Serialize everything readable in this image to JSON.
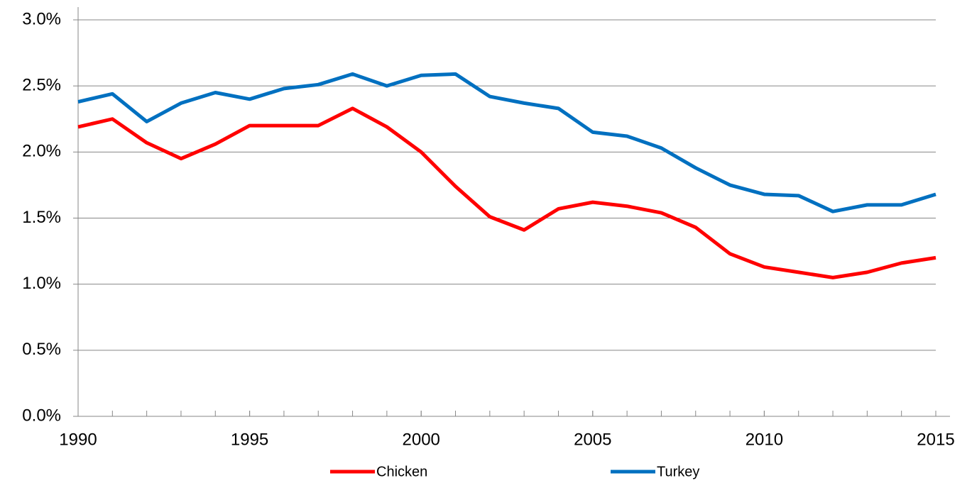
{
  "chart_data": {
    "type": "line",
    "x": [
      1990,
      1991,
      1992,
      1993,
      1994,
      1995,
      1996,
      1997,
      1998,
      1999,
      2000,
      2001,
      2002,
      2003,
      2004,
      2005,
      2006,
      2007,
      2008,
      2009,
      2010,
      2011,
      2012,
      2013,
      2014,
      2015
    ],
    "series": [
      {
        "name": "Chicken",
        "color": "#ff0000",
        "values": [
          2.19,
          2.25,
          2.07,
          1.95,
          2.06,
          2.2,
          2.2,
          2.2,
          2.33,
          2.19,
          2.0,
          1.74,
          1.51,
          1.41,
          1.57,
          1.62,
          1.59,
          1.54,
          1.43,
          1.23,
          1.13,
          1.09,
          1.05,
          1.09,
          1.16,
          1.2
        ]
      },
      {
        "name": "Turkey",
        "color": "#0070c0",
        "values": [
          2.38,
          2.44,
          2.23,
          2.37,
          2.45,
          2.4,
          2.48,
          2.51,
          2.59,
          2.5,
          2.58,
          2.59,
          2.42,
          2.37,
          2.33,
          2.15,
          2.12,
          2.03,
          1.88,
          1.75,
          1.68,
          1.67,
          1.55,
          1.6,
          1.6,
          1.68
        ]
      }
    ],
    "xlim": [
      1990,
      2015
    ],
    "xticks": [
      1990,
      1995,
      2000,
      2005,
      2010,
      2015
    ],
    "ylim": [
      0,
      3.0
    ],
    "yticks": [
      {
        "value": 0,
        "label": "0.0%"
      },
      {
        "value": 0.5,
        "label": "0.5%"
      },
      {
        "value": 1.0,
        "label": "1.0%"
      },
      {
        "value": 1.5,
        "label": "1.5%"
      },
      {
        "value": 2.0,
        "label": "2.0%"
      },
      {
        "value": 2.5,
        "label": "2.5%"
      },
      {
        "value": 3.0,
        "label": "3.0%"
      }
    ],
    "grid": true,
    "legend": "bottom"
  }
}
